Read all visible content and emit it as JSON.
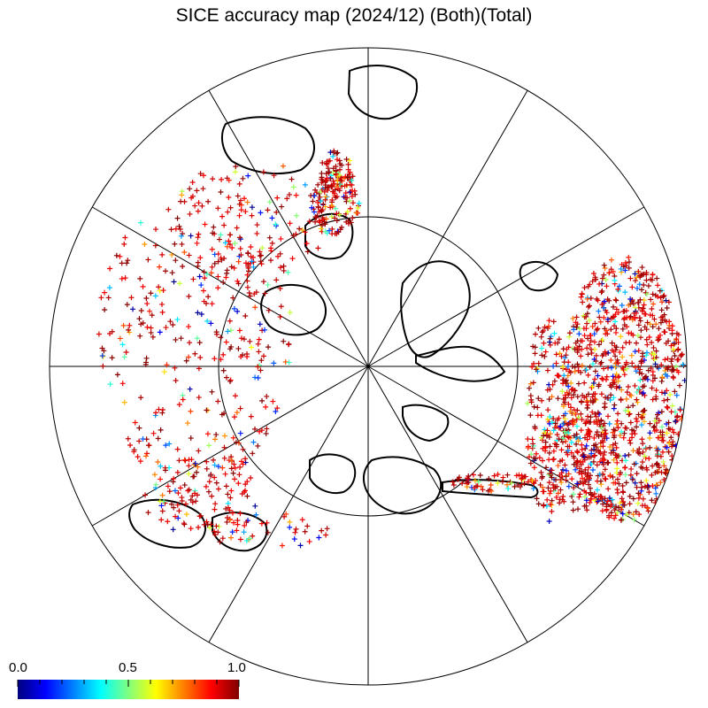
{
  "title": "SICE accuracy map (2024/12) (Both)(Total)",
  "colorbar": {
    "labels": [
      "0.0",
      "0.5",
      "1.0"
    ],
    "min": 0.0,
    "max": 1.0,
    "colors": [
      "#00007f",
      "#0000ff",
      "#007fff",
      "#00ffff",
      "#7fff7f",
      "#ffff00",
      "#ff7f00",
      "#ff0000",
      "#7f0000"
    ]
  },
  "map": {
    "projection": "north-polar-stereographic",
    "graticule_meridians_deg": 30,
    "graticule_inner_circle": true,
    "marker": "plus",
    "value_range": [
      0.0,
      1.0
    ],
    "colors": {
      "coast": "#000000",
      "background": "#ffffff"
    }
  }
}
